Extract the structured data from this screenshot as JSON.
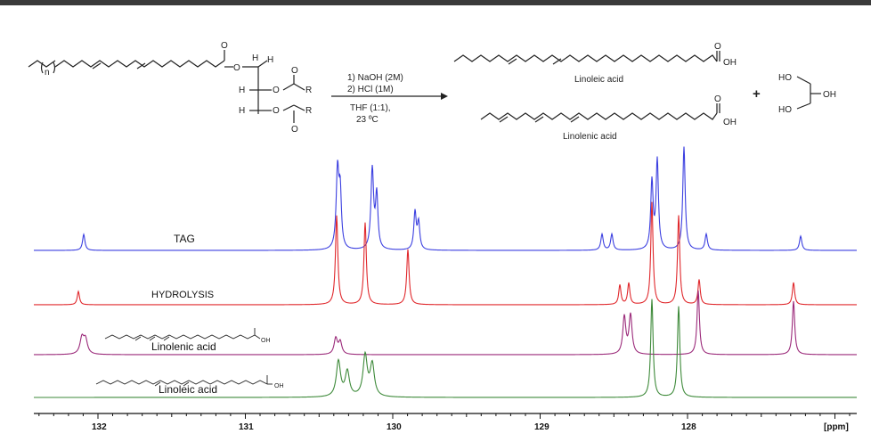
{
  "reaction": {
    "conditions": [
      "1) NaOH (2M)",
      "2) HCl (1M)",
      "THF (1:1),",
      "23 ºC"
    ],
    "reactant_labels": {
      "n": "n",
      "R1": "R",
      "R2": "R",
      "H1": "H",
      "H2": "H",
      "H3": "H",
      "H4": "H",
      "O1": "O",
      "O2": "O",
      "O3": "O",
      "O4": "O",
      "O5": "O",
      "O6": "O"
    },
    "product_top": {
      "name": "Linoleic acid",
      "oh": "OH",
      "o": "O"
    },
    "product_bottom": {
      "name": "Linolenic acid",
      "oh": "OH",
      "o": "O"
    },
    "plus": "+",
    "glycerol": {
      "ho_top": "HO",
      "oh": "OH",
      "ho_bottom": "HO"
    }
  },
  "spectra": {
    "traces": [
      {
        "label": "TAG",
        "color": "#3b3fe0"
      },
      {
        "label": "HYDROLYSIS",
        "color": "#e0282c"
      },
      {
        "label": "Linolenic acid",
        "color": "#9b2a7a",
        "oh": "OH"
      },
      {
        "label": "Linoleic acid",
        "color": "#3e8a3a",
        "oh": "OH"
      }
    ],
    "axis": {
      "ticks": [
        "132",
        "131",
        "130",
        "129",
        "128"
      ],
      "unit": "[ppm]"
    }
  }
}
